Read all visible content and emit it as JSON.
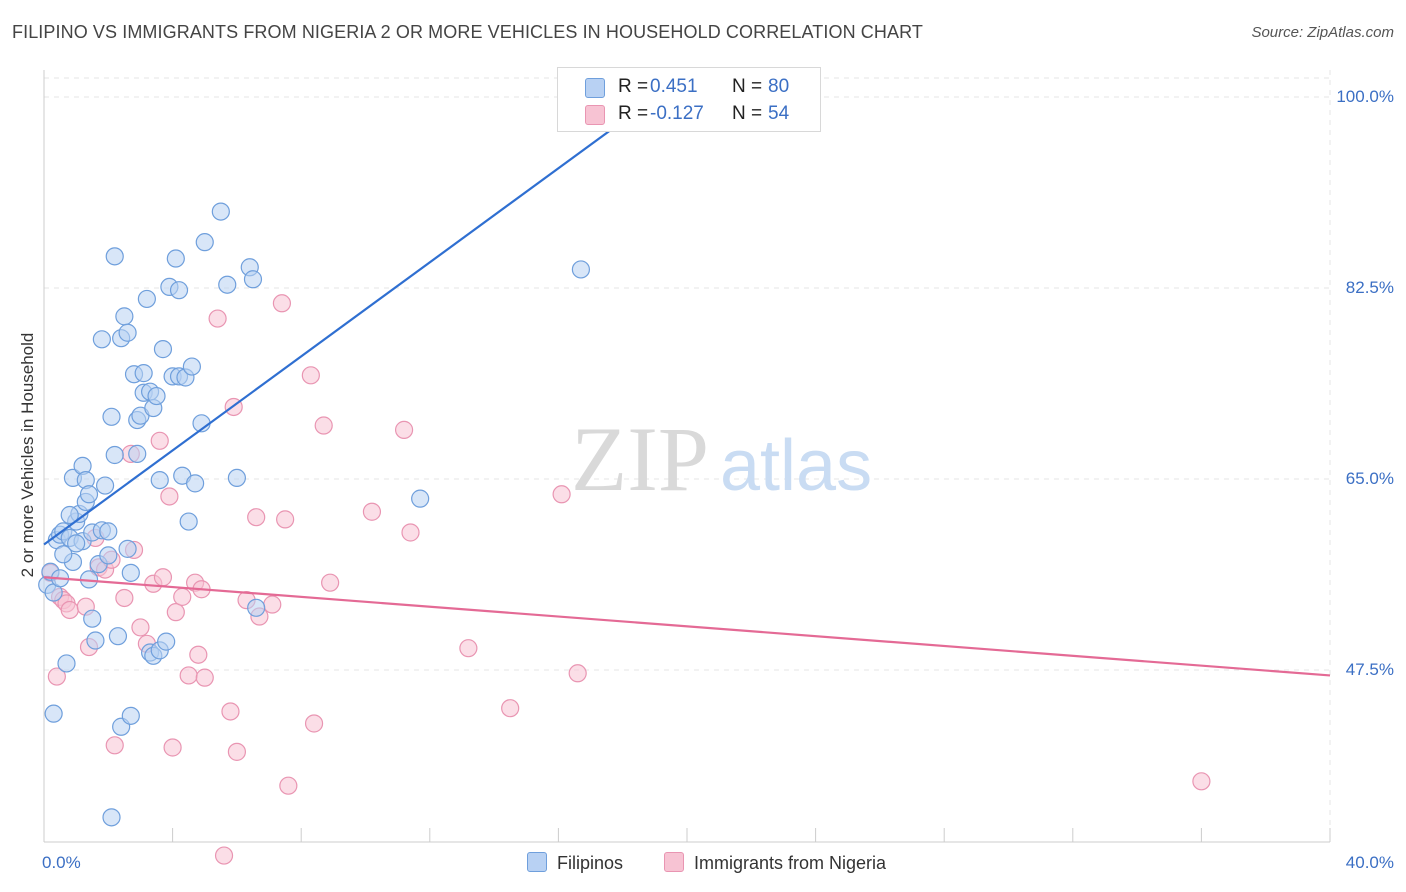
{
  "title": "FILIPINO VS IMMIGRANTS FROM NIGERIA 2 OR MORE VEHICLES IN HOUSEHOLD CORRELATION CHART",
  "source": "Source: ZipAtlas.com",
  "watermark": {
    "zip": "ZIP",
    "atlas": "atlas"
  },
  "colors": {
    "blue_fill": "#b8d1f3",
    "blue_stroke": "#6f9fdc",
    "blue_line": "#2f6fd1",
    "pink_fill": "#f7c3d3",
    "pink_stroke": "#e995b2",
    "pink_line": "#e46a95",
    "value_text": "#3b6fc4"
  },
  "legend": {
    "rows": [
      {
        "r_label": "R =",
        "r_value": "0.451",
        "n_label": "N =",
        "n_value": "80"
      },
      {
        "r_label": "R =",
        "r_value": "-0.127",
        "n_label": "N =",
        "n_value": "54"
      }
    ]
  },
  "bottom_legend": [
    "Filipinos",
    "Immigrants from Nigeria"
  ],
  "chart_data": {
    "type": "scatter",
    "xlabel": "",
    "ylabel": "2 or more Vehicles in Household",
    "xlim": [
      0,
      40
    ],
    "ylim": [
      32,
      103
    ],
    "x_tick_labels": [
      "0.0%",
      "40.0%"
    ],
    "y_ticks": [
      47.5,
      65.0,
      82.5,
      100.0
    ],
    "y_tick_labels": [
      "47.5%",
      "65.0%",
      "82.5%",
      "100.0%"
    ],
    "grid": true,
    "legend_position": "top-center",
    "series": [
      {
        "name": "Filipinos",
        "r": 0.451,
        "n": 80,
        "trend": {
          "x": [
            0.0,
            18.8
          ],
          "y": [
            59.0,
            99.5
          ]
        },
        "points": [
          [
            0.1,
            55.3
          ],
          [
            0.2,
            56.5
          ],
          [
            0.3,
            43.5
          ],
          [
            0.4,
            59.4
          ],
          [
            0.5,
            59.9
          ],
          [
            0.6,
            60.2
          ],
          [
            0.7,
            48.1
          ],
          [
            0.8,
            59.6
          ],
          [
            0.9,
            57.4
          ],
          [
            1.0,
            61.1
          ],
          [
            0.9,
            65.1
          ],
          [
            1.1,
            61.8
          ],
          [
            1.2,
            59.3
          ],
          [
            1.2,
            66.2
          ],
          [
            1.3,
            64.9
          ],
          [
            1.3,
            62.9
          ],
          [
            1.4,
            63.6
          ],
          [
            1.5,
            52.2
          ],
          [
            1.5,
            60.1
          ],
          [
            1.6,
            50.2
          ],
          [
            1.7,
            57.2
          ],
          [
            1.8,
            60.3
          ],
          [
            1.8,
            77.8
          ],
          [
            1.9,
            64.4
          ],
          [
            2.0,
            60.2
          ],
          [
            2.1,
            34.0
          ],
          [
            2.1,
            70.7
          ],
          [
            2.2,
            67.2
          ],
          [
            2.2,
            85.4
          ],
          [
            2.3,
            50.6
          ],
          [
            2.4,
            77.9
          ],
          [
            2.4,
            42.3
          ],
          [
            2.5,
            79.9
          ],
          [
            2.6,
            78.4
          ],
          [
            2.6,
            58.6
          ],
          [
            2.7,
            43.3
          ],
          [
            2.8,
            74.6
          ],
          [
            2.9,
            67.3
          ],
          [
            2.9,
            70.4
          ],
          [
            3.0,
            70.8
          ],
          [
            3.1,
            72.9
          ],
          [
            3.1,
            74.7
          ],
          [
            3.2,
            81.5
          ],
          [
            3.3,
            73.0
          ],
          [
            3.3,
            49.1
          ],
          [
            3.4,
            48.8
          ],
          [
            3.4,
            71.5
          ],
          [
            3.5,
            72.6
          ],
          [
            3.6,
            49.3
          ],
          [
            3.6,
            64.9
          ],
          [
            3.7,
            76.9
          ],
          [
            3.9,
            82.6
          ],
          [
            4.0,
            74.4
          ],
          [
            4.1,
            85.2
          ],
          [
            4.2,
            82.3
          ],
          [
            4.2,
            74.4
          ],
          [
            4.3,
            65.3
          ],
          [
            4.4,
            74.3
          ],
          [
            4.5,
            61.1
          ],
          [
            4.6,
            75.3
          ],
          [
            4.7,
            64.6
          ],
          [
            4.9,
            70.1
          ],
          [
            5.0,
            86.7
          ],
          [
            5.5,
            89.5
          ],
          [
            5.7,
            82.8
          ],
          [
            6.0,
            65.1
          ],
          [
            6.4,
            84.4
          ],
          [
            6.5,
            83.3
          ],
          [
            6.6,
            53.2
          ],
          [
            11.7,
            63.2
          ],
          [
            16.7,
            84.2
          ],
          [
            0.3,
            54.6
          ],
          [
            0.5,
            55.9
          ],
          [
            0.6,
            58.1
          ],
          [
            1.0,
            59.1
          ],
          [
            1.4,
            55.8
          ],
          [
            2.0,
            58.0
          ],
          [
            2.7,
            56.4
          ],
          [
            3.8,
            50.1
          ],
          [
            0.8,
            61.7
          ]
        ]
      },
      {
        "name": "Immigrants from Nigeria",
        "r": -0.127,
        "n": 54,
        "trend": {
          "x": [
            0.0,
            40.0
          ],
          "y": [
            56.0,
            47.0
          ]
        },
        "points": [
          [
            0.2,
            56.4
          ],
          [
            0.4,
            46.9
          ],
          [
            0.5,
            54.2
          ],
          [
            0.6,
            53.9
          ],
          [
            0.7,
            53.6
          ],
          [
            0.8,
            53.0
          ],
          [
            1.3,
            53.3
          ],
          [
            1.4,
            49.6
          ],
          [
            1.6,
            59.6
          ],
          [
            1.7,
            56.9
          ],
          [
            1.9,
            56.7
          ],
          [
            2.1,
            57.6
          ],
          [
            2.2,
            40.6
          ],
          [
            2.5,
            54.1
          ],
          [
            2.7,
            67.3
          ],
          [
            2.8,
            58.5
          ],
          [
            3.0,
            51.4
          ],
          [
            3.2,
            49.9
          ],
          [
            3.4,
            55.4
          ],
          [
            3.6,
            68.5
          ],
          [
            3.7,
            56.0
          ],
          [
            3.9,
            63.4
          ],
          [
            4.0,
            40.4
          ],
          [
            4.1,
            52.8
          ],
          [
            4.3,
            54.2
          ],
          [
            4.5,
            47.0
          ],
          [
            4.7,
            55.5
          ],
          [
            4.8,
            48.9
          ],
          [
            4.9,
            54.9
          ],
          [
            5.0,
            46.8
          ],
          [
            5.4,
            79.7
          ],
          [
            5.6,
            30.5
          ],
          [
            5.8,
            43.7
          ],
          [
            5.9,
            71.6
          ],
          [
            6.0,
            40.0
          ],
          [
            6.3,
            53.9
          ],
          [
            6.6,
            61.5
          ],
          [
            6.7,
            52.4
          ],
          [
            7.1,
            53.5
          ],
          [
            7.4,
            81.1
          ],
          [
            7.5,
            61.3
          ],
          [
            7.6,
            36.9
          ],
          [
            8.3,
            74.5
          ],
          [
            8.4,
            42.6
          ],
          [
            8.7,
            69.9
          ],
          [
            8.9,
            55.5
          ],
          [
            10.2,
            62.0
          ],
          [
            11.2,
            69.5
          ],
          [
            11.4,
            60.1
          ],
          [
            13.2,
            49.5
          ],
          [
            14.5,
            44.0
          ],
          [
            16.1,
            63.6
          ],
          [
            16.6,
            47.2
          ],
          [
            36.0,
            37.3
          ]
        ]
      }
    ]
  }
}
